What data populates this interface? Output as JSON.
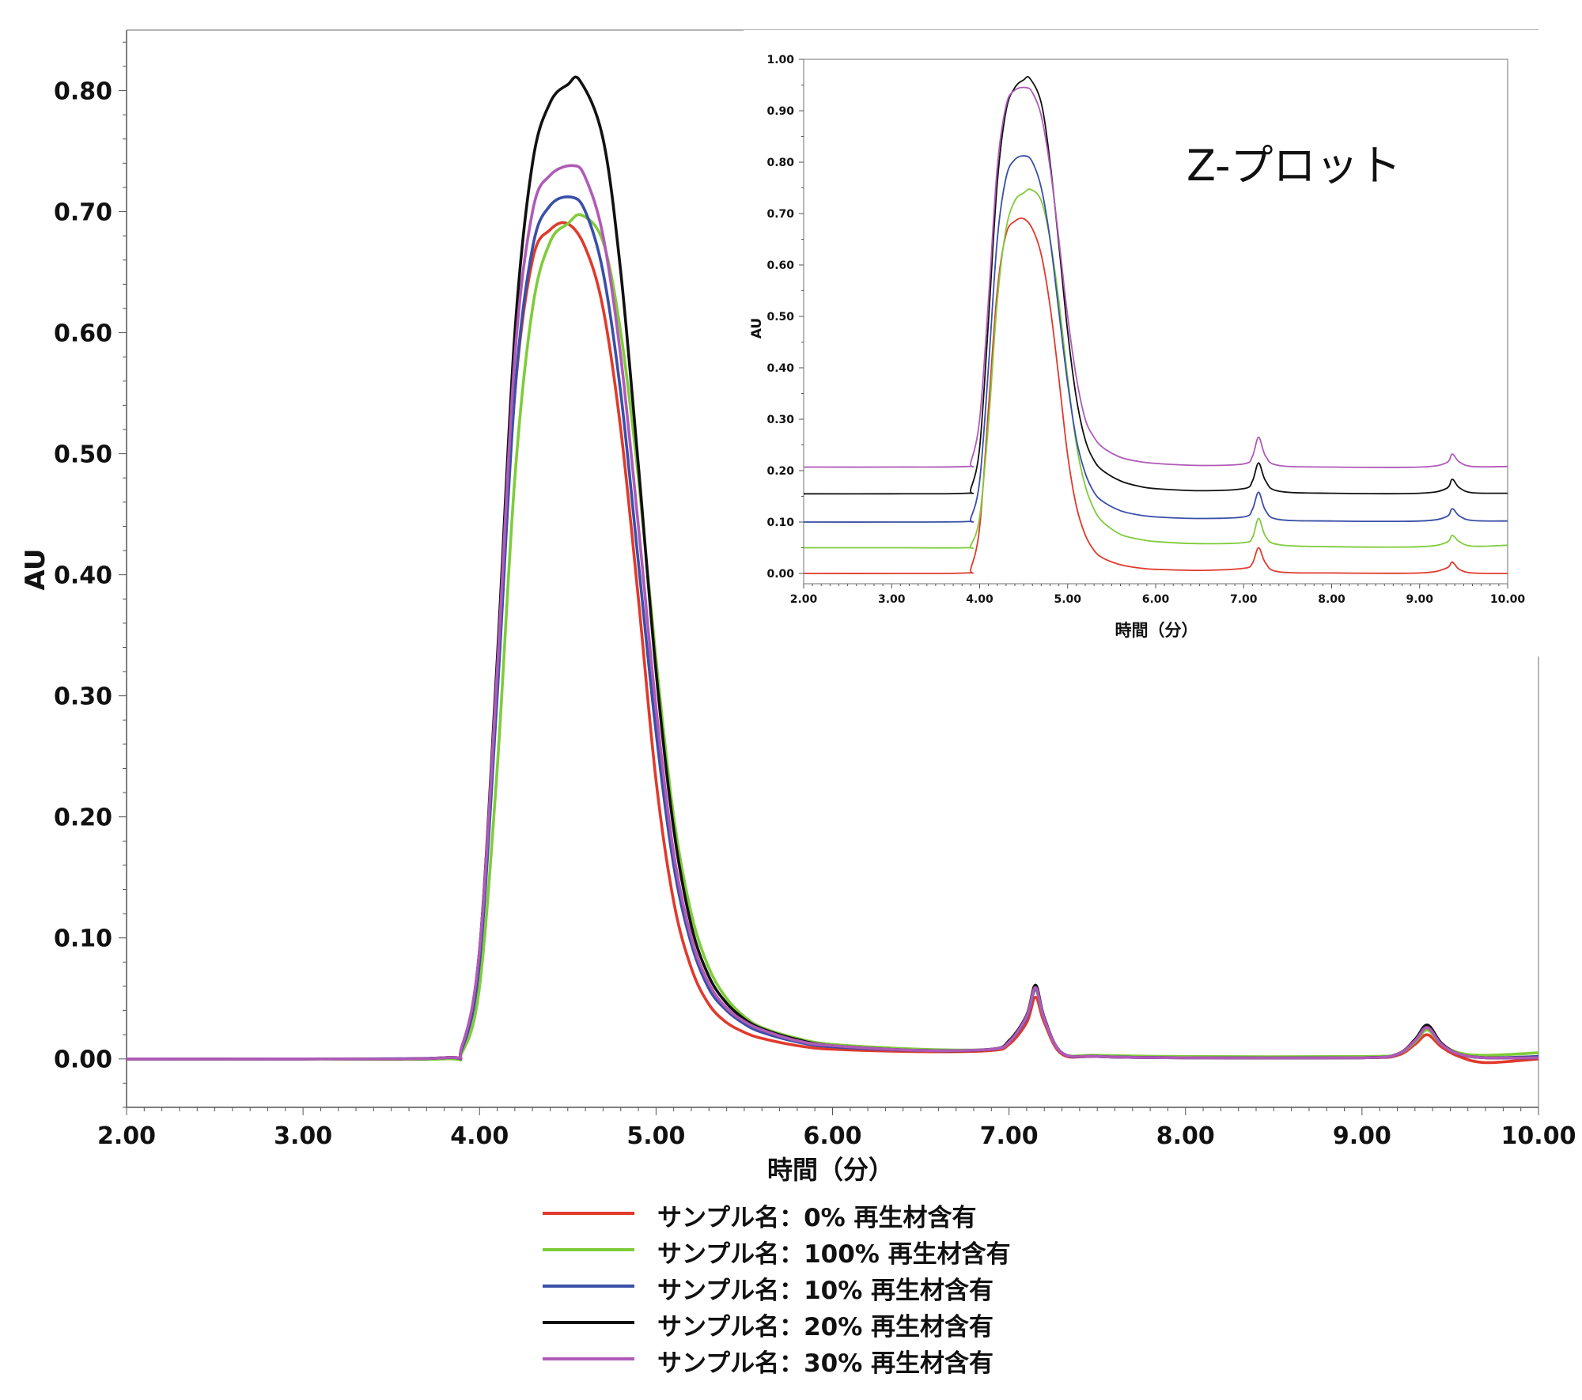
{
  "chart_data": [
    {
      "type": "line",
      "xlabel": "時間（分）",
      "ylabel": "AU",
      "xlim": [
        2.0,
        10.0
      ],
      "ylim": [
        -0.04,
        0.85
      ],
      "x_ticks": [
        "2.00",
        "3.00",
        "4.00",
        "5.00",
        "6.00",
        "7.00",
        "8.00",
        "9.00",
        "10.00"
      ],
      "y_ticks": [
        "0.00",
        "0.10",
        "0.20",
        "0.30",
        "0.40",
        "0.50",
        "0.60",
        "0.70",
        "0.80"
      ],
      "grid": false,
      "legend_position": "bottom-center",
      "series": [
        {
          "name": "サンプル名：0% 再生材含有",
          "color": "#e03a2c",
          "x": [
            2.0,
            3.0,
            3.8,
            3.9,
            4.0,
            4.1,
            4.2,
            4.3,
            4.4,
            4.5,
            4.6,
            4.7,
            4.8,
            4.9,
            5.0,
            5.1,
            5.2,
            5.3,
            5.4,
            5.5,
            5.6,
            5.8,
            6.0,
            6.5,
            6.9,
            7.0,
            7.1,
            7.15,
            7.2,
            7.3,
            7.5,
            8.0,
            9.0,
            9.2,
            9.3,
            9.37,
            9.45,
            9.55,
            9.7,
            10.0
          ],
          "y": [
            0,
            0,
            0.001,
            0.01,
            0.09,
            0.32,
            0.55,
            0.66,
            0.685,
            0.69,
            0.67,
            0.62,
            0.52,
            0.38,
            0.23,
            0.13,
            0.075,
            0.045,
            0.03,
            0.022,
            0.017,
            0.011,
            0.008,
            0.006,
            0.007,
            0.012,
            0.03,
            0.051,
            0.03,
            0.004,
            0.002,
            0.001,
            0.001,
            0.003,
            0.012,
            0.02,
            0.01,
            0.002,
            -0.003,
            0.0
          ]
        },
        {
          "name": "サンプル名：100% 再生材含有",
          "color": "#7fcc3a",
          "x": [
            2.0,
            3.0,
            3.8,
            3.9,
            4.0,
            4.1,
            4.2,
            4.3,
            4.4,
            4.5,
            4.58,
            4.7,
            4.8,
            4.9,
            5.0,
            5.1,
            5.2,
            5.3,
            5.4,
            5.5,
            5.6,
            5.8,
            6.0,
            6.5,
            6.9,
            7.0,
            7.1,
            7.15,
            7.2,
            7.3,
            7.5,
            8.0,
            9.0,
            9.2,
            9.3,
            9.37,
            9.45,
            9.55,
            9.7,
            10.0
          ],
          "y": [
            0,
            0,
            0.0,
            0.005,
            0.06,
            0.24,
            0.48,
            0.62,
            0.675,
            0.69,
            0.697,
            0.675,
            0.6,
            0.48,
            0.33,
            0.2,
            0.12,
            0.075,
            0.05,
            0.035,
            0.026,
            0.017,
            0.012,
            0.008,
            0.008,
            0.014,
            0.035,
            0.057,
            0.033,
            0.005,
            0.003,
            0.002,
            0.002,
            0.004,
            0.014,
            0.024,
            0.012,
            0.005,
            0.003,
            0.005
          ]
        },
        {
          "name": "サンプル名：10% 再生材含有",
          "color": "#3a4fa8",
          "x": [
            2.0,
            3.0,
            3.8,
            3.9,
            4.0,
            4.1,
            4.2,
            4.3,
            4.4,
            4.52,
            4.6,
            4.7,
            4.8,
            4.9,
            5.0,
            5.1,
            5.2,
            5.3,
            5.4,
            5.5,
            5.6,
            5.8,
            6.0,
            6.5,
            6.9,
            7.0,
            7.1,
            7.15,
            7.2,
            7.3,
            7.5,
            8.0,
            9.0,
            9.2,
            9.3,
            9.37,
            9.45,
            9.55,
            9.7,
            10.0
          ],
          "y": [
            0,
            0,
            0.001,
            0.008,
            0.08,
            0.3,
            0.55,
            0.67,
            0.705,
            0.712,
            0.7,
            0.65,
            0.55,
            0.41,
            0.27,
            0.16,
            0.095,
            0.058,
            0.04,
            0.029,
            0.022,
            0.014,
            0.01,
            0.007,
            0.008,
            0.014,
            0.034,
            0.058,
            0.033,
            0.005,
            0.002,
            0.001,
            0.001,
            0.004,
            0.015,
            0.026,
            0.012,
            0.004,
            0.001,
            0.002
          ]
        },
        {
          "name": "サンプル名：20% 再生材含有",
          "color": "#111111",
          "x": [
            2.0,
            3.0,
            3.8,
            3.9,
            4.0,
            4.1,
            4.2,
            4.3,
            4.4,
            4.5,
            4.57,
            4.7,
            4.8,
            4.9,
            5.0,
            5.1,
            5.2,
            5.3,
            5.4,
            5.5,
            5.6,
            5.8,
            6.0,
            6.5,
            6.9,
            7.0,
            7.1,
            7.15,
            7.2,
            7.3,
            7.5,
            8.0,
            9.0,
            9.2,
            9.3,
            9.37,
            9.45,
            9.55,
            9.7,
            10.0
          ],
          "y": [
            0,
            0,
            0.001,
            0.01,
            0.09,
            0.33,
            0.6,
            0.74,
            0.79,
            0.805,
            0.808,
            0.76,
            0.65,
            0.49,
            0.32,
            0.19,
            0.11,
            0.068,
            0.046,
            0.033,
            0.025,
            0.016,
            0.011,
            0.007,
            0.008,
            0.015,
            0.036,
            0.061,
            0.034,
            0.005,
            0.002,
            0.001,
            0.001,
            0.004,
            0.016,
            0.028,
            0.013,
            0.004,
            0.001,
            0.001
          ]
        },
        {
          "name": "サンプル名：30% 再生材含有",
          "color": "#b05ab8",
          "x": [
            2.0,
            3.0,
            3.8,
            3.9,
            4.0,
            4.1,
            4.2,
            4.3,
            4.4,
            4.53,
            4.6,
            4.7,
            4.8,
            4.9,
            5.0,
            5.1,
            5.2,
            5.3,
            5.4,
            5.5,
            5.6,
            5.8,
            6.0,
            6.5,
            6.9,
            7.0,
            7.1,
            7.15,
            7.2,
            7.3,
            7.5,
            8.0,
            9.0,
            9.2,
            9.3,
            9.37,
            9.45,
            9.55,
            9.7,
            10.0
          ],
          "y": [
            0,
            0,
            0.001,
            0.01,
            0.09,
            0.32,
            0.58,
            0.7,
            0.73,
            0.738,
            0.728,
            0.68,
            0.58,
            0.44,
            0.29,
            0.17,
            0.1,
            0.062,
            0.042,
            0.031,
            0.024,
            0.015,
            0.011,
            0.007,
            0.008,
            0.014,
            0.035,
            0.059,
            0.033,
            0.005,
            0.002,
            0.001,
            0.001,
            0.004,
            0.015,
            0.026,
            0.012,
            0.004,
            0.001,
            0.001
          ]
        }
      ]
    },
    {
      "type": "line",
      "title": "Z-プロット",
      "xlabel": "時間（分）",
      "ylabel": "AU",
      "xlim": [
        2.0,
        10.0
      ],
      "ylim": [
        -0.02,
        1.0
      ],
      "x_ticks": [
        "2.00",
        "3.00",
        "4.00",
        "5.00",
        "6.00",
        "7.00",
        "8.00",
        "9.00",
        "10.00"
      ],
      "y_ticks": [
        "0.00",
        "0.10",
        "0.20",
        "0.30",
        "0.40",
        "0.50",
        "0.60",
        "0.70",
        "0.80",
        "0.90",
        "1.00"
      ],
      "grid": false,
      "series": [
        {
          "color": "#e03a2c",
          "x": [
            2.0,
            3.0,
            3.85,
            3.9,
            4.0,
            4.1,
            4.2,
            4.3,
            4.4,
            4.5,
            4.6,
            4.7,
            4.8,
            4.9,
            5.0,
            5.1,
            5.2,
            5.3,
            5.4,
            5.6,
            5.8,
            6.0,
            6.5,
            7.0,
            7.1,
            7.17,
            7.25,
            7.4,
            8.0,
            9.0,
            9.3,
            9.37,
            9.45,
            9.6,
            10.0
          ],
          "y": [
            0,
            0,
            0.001,
            0.01,
            0.09,
            0.32,
            0.55,
            0.66,
            0.685,
            0.69,
            0.67,
            0.62,
            0.52,
            0.38,
            0.23,
            0.13,
            0.075,
            0.045,
            0.03,
            0.017,
            0.011,
            0.008,
            0.006,
            0.01,
            0.02,
            0.05,
            0.02,
            0.003,
            0.001,
            0.001,
            0.01,
            0.022,
            0.008,
            0.001,
            0.0
          ]
        },
        {
          "color": "#7fcc3a",
          "x": [
            2.0,
            3.0,
            3.85,
            3.9,
            4.0,
            4.1,
            4.2,
            4.3,
            4.4,
            4.5,
            4.58,
            4.7,
            4.8,
            4.9,
            5.0,
            5.1,
            5.2,
            5.3,
            5.4,
            5.6,
            5.8,
            6.0,
            6.5,
            7.0,
            7.1,
            7.17,
            7.25,
            7.4,
            8.0,
            9.0,
            9.3,
            9.37,
            9.45,
            9.6,
            10.0
          ],
          "y": [
            0.05,
            0.05,
            0.05,
            0.055,
            0.11,
            0.29,
            0.53,
            0.67,
            0.725,
            0.74,
            0.747,
            0.725,
            0.65,
            0.53,
            0.38,
            0.25,
            0.17,
            0.125,
            0.1,
            0.076,
            0.067,
            0.062,
            0.058,
            0.06,
            0.07,
            0.107,
            0.072,
            0.056,
            0.052,
            0.052,
            0.06,
            0.074,
            0.062,
            0.053,
            0.055
          ]
        },
        {
          "color": "#3a4fa8",
          "x": [
            2.0,
            3.0,
            3.85,
            3.9,
            4.0,
            4.1,
            4.2,
            4.3,
            4.4,
            4.52,
            4.6,
            4.7,
            4.8,
            4.9,
            5.0,
            5.1,
            5.2,
            5.3,
            5.4,
            5.6,
            5.8,
            6.0,
            6.5,
            7.0,
            7.1,
            7.17,
            7.25,
            7.4,
            8.0,
            9.0,
            9.3,
            9.37,
            9.45,
            9.6,
            10.0
          ],
          "y": [
            0.1,
            0.1,
            0.101,
            0.108,
            0.18,
            0.4,
            0.65,
            0.77,
            0.805,
            0.812,
            0.8,
            0.75,
            0.65,
            0.51,
            0.37,
            0.26,
            0.195,
            0.158,
            0.14,
            0.122,
            0.114,
            0.11,
            0.107,
            0.11,
            0.125,
            0.158,
            0.122,
            0.105,
            0.102,
            0.102,
            0.11,
            0.126,
            0.112,
            0.103,
            0.102
          ]
        },
        {
          "color": "#111111",
          "x": [
            2.0,
            3.0,
            3.85,
            3.9,
            4.0,
            4.1,
            4.2,
            4.3,
            4.4,
            4.5,
            4.57,
            4.7,
            4.8,
            4.9,
            5.0,
            5.1,
            5.2,
            5.3,
            5.4,
            5.6,
            5.8,
            6.0,
            6.5,
            7.0,
            7.1,
            7.17,
            7.25,
            7.4,
            8.0,
            9.0,
            9.3,
            9.37,
            9.45,
            9.6,
            10.0
          ],
          "y": [
            0.155,
            0.155,
            0.156,
            0.165,
            0.245,
            0.49,
            0.76,
            0.9,
            0.945,
            0.96,
            0.963,
            0.915,
            0.8,
            0.64,
            0.47,
            0.34,
            0.26,
            0.22,
            0.2,
            0.18,
            0.17,
            0.165,
            0.161,
            0.165,
            0.18,
            0.215,
            0.18,
            0.16,
            0.156,
            0.156,
            0.165,
            0.183,
            0.167,
            0.157,
            0.156
          ]
        },
        {
          "color": "#b05ab8",
          "x": [
            2.0,
            3.0,
            3.85,
            3.9,
            4.0,
            4.1,
            4.2,
            4.3,
            4.4,
            4.53,
            4.6,
            4.7,
            4.8,
            4.9,
            5.0,
            5.1,
            5.2,
            5.3,
            5.4,
            5.6,
            5.8,
            6.0,
            6.5,
            7.0,
            7.1,
            7.17,
            7.25,
            7.4,
            8.0,
            9.0,
            9.3,
            9.37,
            9.45,
            9.6,
            10.0
          ],
          "y": [
            0.207,
            0.207,
            0.208,
            0.217,
            0.3,
            0.53,
            0.79,
            0.91,
            0.94,
            0.945,
            0.935,
            0.89,
            0.79,
            0.65,
            0.5,
            0.38,
            0.3,
            0.265,
            0.245,
            0.226,
            0.218,
            0.214,
            0.21,
            0.213,
            0.228,
            0.265,
            0.228,
            0.21,
            0.207,
            0.207,
            0.215,
            0.232,
            0.217,
            0.208,
            0.208
          ]
        }
      ]
    }
  ]
}
